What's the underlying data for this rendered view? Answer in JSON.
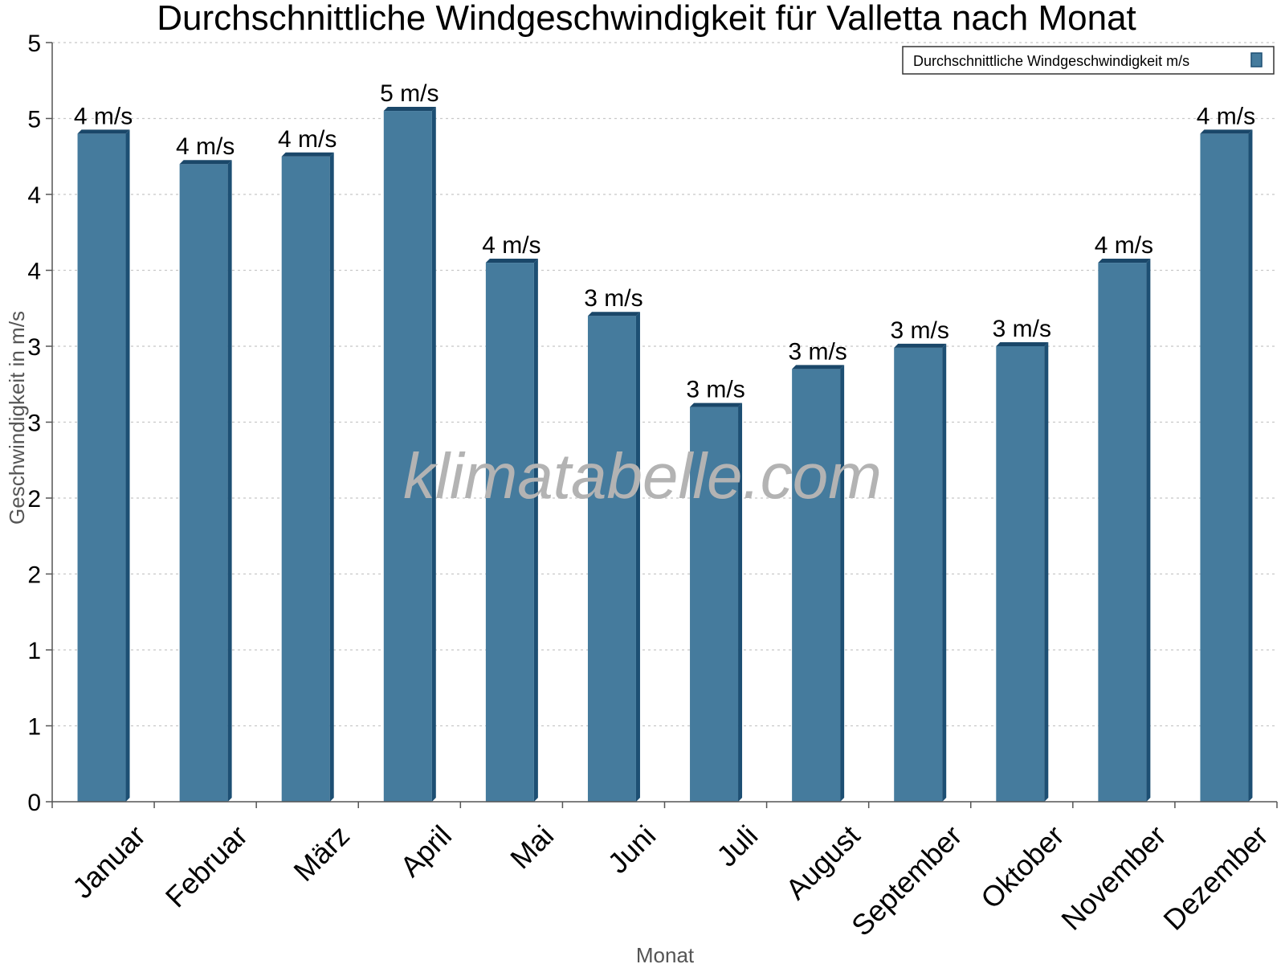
{
  "chart_data": {
    "type": "bar",
    "title": "Durchschnittliche Windgeschwindigkeit für Valletta nach Monat",
    "xlabel": "Monat",
    "ylabel": "Geschwindigkeit in m/s",
    "categories": [
      "Januar",
      "Februar",
      "März",
      "April",
      "Mai",
      "Juni",
      "Juli",
      "August",
      "September",
      "Oktober",
      "November",
      "Dezember"
    ],
    "series": [
      {
        "name": "Durchschnittliche Windgeschwindigkeit m/s",
        "values": [
          4.4,
          4.2,
          4.25,
          4.55,
          3.55,
          3.2,
          2.6,
          2.85,
          2.99,
          3.0,
          3.55,
          4.4
        ],
        "labels": [
          "4 m/s",
          "4 m/s",
          "4 m/s",
          "5 m/s",
          "4 m/s",
          "3 m/s",
          "3 m/s",
          "3 m/s",
          "3 m/s",
          "3 m/s",
          "4 m/s",
          "4 m/s"
        ],
        "color": "#457b9d"
      }
    ],
    "ylim": [
      0,
      5
    ],
    "ytick_values": [
      0,
      0.5,
      1,
      1.5,
      2,
      2.5,
      3,
      3.5,
      4,
      4.5,
      5
    ],
    "ytick_labels": [
      "0",
      "1",
      "1",
      "2",
      "2",
      "3",
      "3",
      "4",
      "4",
      "5",
      "5"
    ],
    "grid": true,
    "legend_position": "top-right",
    "watermark": "klimatabelle.com"
  }
}
